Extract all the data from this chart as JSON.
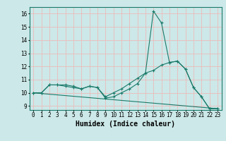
{
  "title": "",
  "xlabel": "Humidex (Indice chaleur)",
  "ylabel": "",
  "bg_color": "#cce8e8",
  "grid_color": "#e8c0c0",
  "line_color": "#1a7a6a",
  "xlim": [
    -0.5,
    23.5
  ],
  "ylim": [
    8.7,
    16.5
  ],
  "xticks": [
    0,
    1,
    2,
    3,
    4,
    5,
    6,
    7,
    8,
    9,
    10,
    11,
    12,
    13,
    14,
    15,
    16,
    17,
    18,
    19,
    20,
    21,
    22,
    23
  ],
  "yticks": [
    9,
    10,
    11,
    12,
    13,
    14,
    15,
    16
  ],
  "line1_x": [
    0,
    1,
    2,
    3,
    4,
    5,
    6,
    7,
    8,
    9,
    10,
    11,
    12,
    13,
    14,
    15,
    16,
    17,
    18,
    19,
    20,
    21,
    22,
    23
  ],
  "line1_y": [
    10.0,
    10.0,
    10.6,
    10.6,
    10.6,
    10.5,
    10.3,
    10.5,
    10.4,
    9.6,
    9.7,
    10.0,
    10.3,
    10.7,
    11.5,
    16.2,
    15.3,
    12.3,
    12.4,
    11.8,
    10.4,
    9.7,
    8.8,
    8.8
  ],
  "line2_x": [
    0,
    1,
    2,
    3,
    4,
    5,
    6,
    7,
    8,
    9,
    10,
    11,
    12,
    13,
    14,
    15,
    16,
    17,
    18,
    19,
    20,
    21,
    22,
    23
  ],
  "line2_y": [
    10.0,
    10.0,
    10.6,
    10.6,
    10.5,
    10.4,
    10.3,
    10.5,
    10.4,
    9.7,
    10.0,
    10.3,
    10.7,
    11.1,
    11.5,
    11.7,
    12.1,
    12.3,
    12.4,
    11.8,
    10.4,
    9.7,
    8.8,
    8.8
  ],
  "line3_x": [
    0,
    23
  ],
  "line3_y": [
    10.0,
    8.8
  ],
  "xlabel_fontsize": 7,
  "tick_fontsize": 5.5
}
